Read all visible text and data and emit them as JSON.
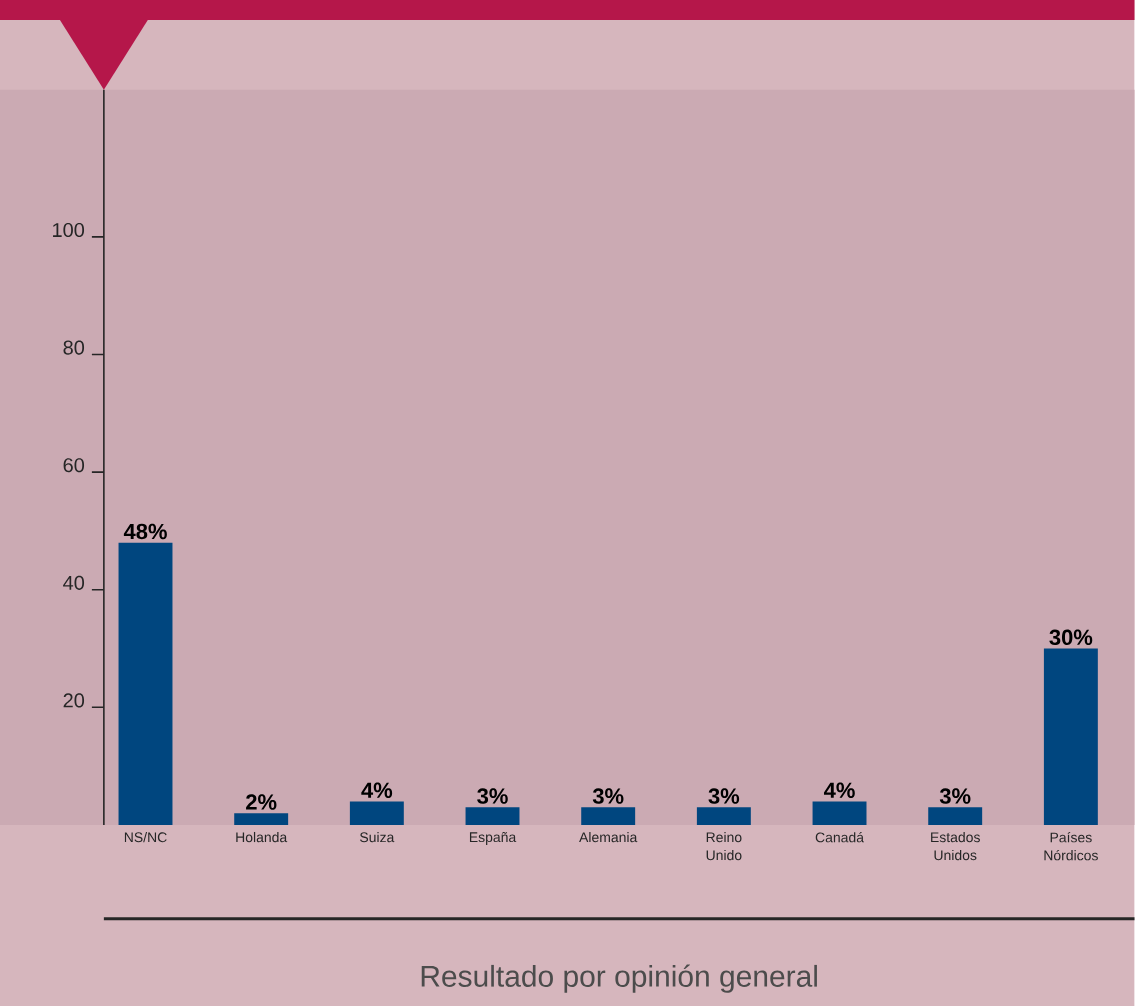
{
  "chart_data": {
    "type": "bar",
    "categories": [
      "NS/NC",
      "Holanda",
      "Suiza",
      "España",
      "Alemania",
      "Reino Unido",
      "Canadá",
      "Estados Unidos",
      "Países Nórdicos"
    ],
    "values": [
      48,
      2,
      4,
      3,
      3,
      3,
      4,
      3,
      30
    ],
    "value_labels": [
      "48%",
      "2%",
      "4%",
      "3%",
      "3%",
      "3%",
      "4%",
      "3%",
      "30%"
    ],
    "color": "#00467f",
    "ylim": [
      0,
      125
    ],
    "yticks": [
      20,
      40,
      60,
      80,
      100
    ],
    "xlabel": "Resultado por opinión general"
  }
}
